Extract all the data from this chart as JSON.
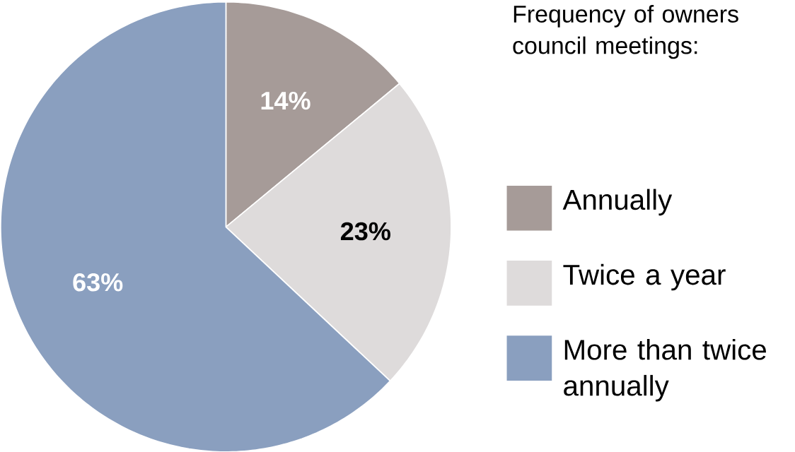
{
  "chart_data": {
    "type": "pie",
    "legend_title": "Frequency of owners council meetings:",
    "categories": [
      "Annually",
      "Twice a year",
      "More than twice annually"
    ],
    "values": [
      14,
      23,
      63
    ],
    "colors": [
      "#a69b98",
      "#dedbdb",
      "#8a9fbf"
    ],
    "value_labels": [
      "14%",
      "23%",
      "63%"
    ],
    "legend": "right"
  }
}
